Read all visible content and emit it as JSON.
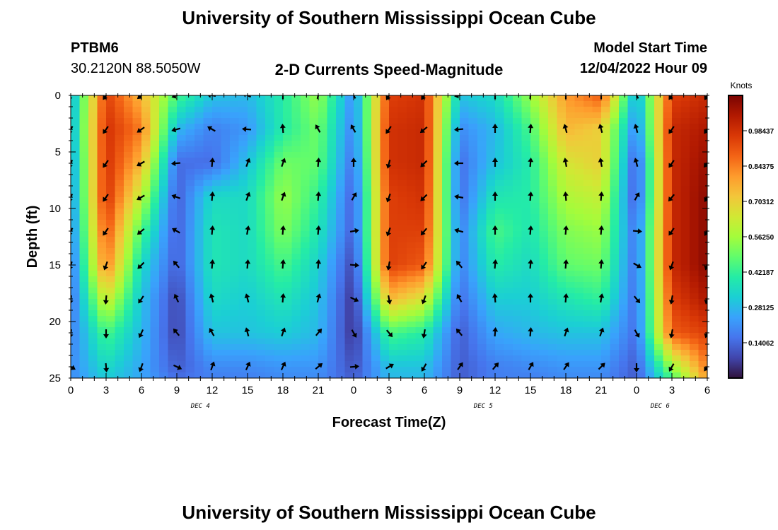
{
  "header": {
    "title": "University of Southern Mississippi Ocean Cube",
    "station_id": "PTBM6",
    "station_location": "30.2120N  88.5050W",
    "plot_title": "2-D Currents Speed-Magnitude",
    "model_start_label": "Model Start Time",
    "model_start_value": "12/04/2022 Hour 09"
  },
  "footer": {
    "title": "University of Southern Mississippi Ocean Cube"
  },
  "colors": {
    "colormap": [
      "#30123b",
      "#4145ab",
      "#4675ed",
      "#39a2fc",
      "#1bcfd4",
      "#24eca6",
      "#61fc6c",
      "#a4fc3b",
      "#d1e834",
      "#f3c63a",
      "#fe9b2d",
      "#f36315",
      "#d93806",
      "#b11901",
      "#7a0402"
    ],
    "arrow": "#000000"
  },
  "chart_data": {
    "type": "heatmap",
    "title": "2-D Currents Speed-Magnitude",
    "xlabel": "Forecast Time(Z)",
    "ylabel": "Depth (ft)",
    "x_range": [
      0,
      54
    ],
    "y_range": [
      0,
      25
    ],
    "y_ticks": [
      0,
      5,
      10,
      15,
      20,
      25
    ],
    "x_tick_labels": [
      "0",
      "3",
      "6",
      "9",
      "12",
      "15",
      "18",
      "21",
      "0",
      "3",
      "6",
      "9",
      "12",
      "15",
      "18",
      "21",
      "0",
      "3",
      "6"
    ],
    "date_labels": [
      {
        "label": "DEC 4",
        "hour": 11
      },
      {
        "label": "DEC 5",
        "hour": 35
      },
      {
        "label": "DEC 6",
        "hour": 50
      }
    ],
    "colorbar": {
      "title": "Knots",
      "min": 0,
      "max": 1.125,
      "labels": [
        "0.98437",
        "0.84375",
        "0.70312",
        "0.56250",
        "0.42187",
        "0.28125",
        "0.14062"
      ],
      "values": [
        0.984375,
        0.84375,
        0.703125,
        0.5625,
        0.421875,
        0.28125,
        0.140625
      ]
    },
    "speed_grid": {
      "x": [
        0,
        3,
        6,
        9,
        12,
        15,
        18,
        21,
        24,
        27,
        30,
        33,
        36,
        39,
        42,
        45,
        48,
        51,
        54
      ],
      "depth": [
        0,
        3,
        6,
        9,
        12,
        15,
        18,
        21,
        24,
        25
      ],
      "knots": [
        [
          0.25,
          0.95,
          0.75,
          0.45,
          0.3,
          0.28,
          0.4,
          0.55,
          0.2,
          0.95,
          0.98,
          0.3,
          0.35,
          0.55,
          0.8,
          0.9,
          0.25,
          0.95,
          1.0
        ],
        [
          0.25,
          0.98,
          0.85,
          0.28,
          0.18,
          0.22,
          0.4,
          0.5,
          0.18,
          0.98,
          1.0,
          0.2,
          0.28,
          0.45,
          0.75,
          0.7,
          0.18,
          1.0,
          1.05
        ],
        [
          0.22,
          0.98,
          0.75,
          0.15,
          0.15,
          0.3,
          0.5,
          0.48,
          0.15,
          0.98,
          1.0,
          0.15,
          0.3,
          0.4,
          0.65,
          0.7,
          0.1,
          1.0,
          1.08
        ],
        [
          0.2,
          0.98,
          0.6,
          0.12,
          0.35,
          0.35,
          0.55,
          0.42,
          0.12,
          0.95,
          0.98,
          0.15,
          0.38,
          0.4,
          0.58,
          0.62,
          0.1,
          1.0,
          1.1
        ],
        [
          0.18,
          0.92,
          0.45,
          0.12,
          0.38,
          0.35,
          0.52,
          0.38,
          0.12,
          0.95,
          0.95,
          0.18,
          0.45,
          0.38,
          0.52,
          0.55,
          0.15,
          1.0,
          1.1
        ],
        [
          0.15,
          0.85,
          0.35,
          0.12,
          0.38,
          0.35,
          0.45,
          0.33,
          0.08,
          0.95,
          0.9,
          0.18,
          0.4,
          0.35,
          0.48,
          0.5,
          0.15,
          1.0,
          1.1
        ],
        [
          0.15,
          0.65,
          0.3,
          0.08,
          0.35,
          0.32,
          0.38,
          0.3,
          0.05,
          0.75,
          0.65,
          0.15,
          0.32,
          0.32,
          0.38,
          0.42,
          0.15,
          0.95,
          1.05
        ],
        [
          0.18,
          0.45,
          0.28,
          0.08,
          0.3,
          0.3,
          0.32,
          0.28,
          0.05,
          0.45,
          0.4,
          0.12,
          0.25,
          0.28,
          0.3,
          0.3,
          0.15,
          0.9,
          0.95
        ],
        [
          0.2,
          0.35,
          0.25,
          0.12,
          0.2,
          0.2,
          0.22,
          0.22,
          0.1,
          0.3,
          0.3,
          0.12,
          0.18,
          0.2,
          0.22,
          0.22,
          0.12,
          0.55,
          0.85
        ],
        [
          0.2,
          0.32,
          0.25,
          0.15,
          0.18,
          0.18,
          0.2,
          0.2,
          0.12,
          0.28,
          0.28,
          0.12,
          0.18,
          0.18,
          0.2,
          0.2,
          0.12,
          0.45,
          0.8
        ]
      ]
    },
    "vector_grid": {
      "x": [
        0,
        3,
        6,
        9,
        12,
        15,
        18,
        21,
        24,
        27,
        30,
        33,
        36,
        39,
        42,
        45,
        48,
        51,
        54
      ],
      "depth": [
        0,
        3,
        6,
        9,
        12,
        15,
        18,
        21,
        24
      ],
      "direction_deg": [
        [
          210,
          215,
          230,
          250,
          280,
          295,
          0,
          15,
          330,
          210,
          215,
          260,
          0,
          5,
          0,
          0,
          330,
          215,
          210
        ],
        [
          210,
          215,
          235,
          255,
          300,
          275,
          355,
          330,
          330,
          215,
          230,
          265,
          0,
          5,
          345,
          345,
          345,
          215,
          215
        ],
        [
          205,
          215,
          240,
          265,
          5,
          20,
          20,
          5,
          0,
          195,
          225,
          270,
          0,
          5,
          350,
          350,
          345,
          215,
          220
        ],
        [
          205,
          215,
          240,
          290,
          5,
          20,
          20,
          5,
          30,
          200,
          225,
          280,
          0,
          5,
          355,
          5,
          30,
          220,
          210
        ],
        [
          210,
          215,
          230,
          300,
          5,
          10,
          5,
          5,
          80,
          200,
          220,
          285,
          0,
          5,
          5,
          5,
          95,
          215,
          210
        ],
        [
          200,
          200,
          225,
          320,
          5,
          5,
          5,
          5,
          95,
          190,
          215,
          320,
          5,
          5,
          5,
          5,
          120,
          200,
          200
        ],
        [
          190,
          185,
          215,
          335,
          345,
          345,
          5,
          15,
          115,
          170,
          200,
          330,
          355,
          0,
          5,
          10,
          140,
          190,
          195
        ],
        [
          190,
          180,
          205,
          320,
          330,
          345,
          20,
          40,
          150,
          140,
          190,
          320,
          5,
          5,
          20,
          20,
          150,
          190,
          200
        ],
        [
          120,
          175,
          200,
          115,
          20,
          25,
          25,
          50,
          85,
          60,
          210,
          35,
          40,
          30,
          35,
          45,
          180,
          210,
          215
        ]
      ]
    }
  }
}
